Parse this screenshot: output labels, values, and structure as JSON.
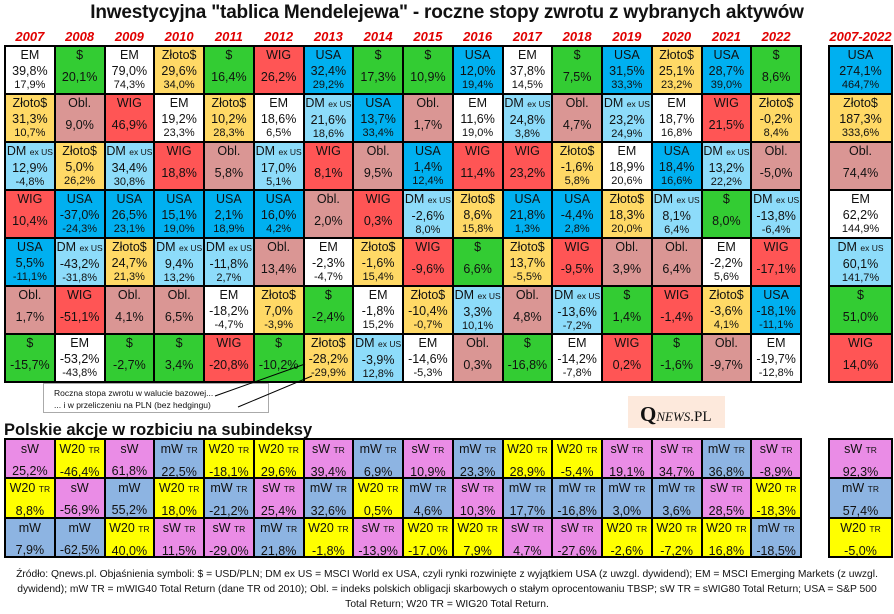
{
  "title": "Inwestycyjna \"tablica Mendelejewa\" - roczne stopy zwrotu z wybranych aktywów",
  "years": [
    "2007",
    "2008",
    "2009",
    "2010",
    "2011",
    "2012",
    "2013",
    "2014",
    "2015",
    "2016",
    "2017",
    "2018",
    "2019",
    "2020",
    "2021",
    "2022"
  ],
  "total_header": "2007-2022",
  "colors": {
    "EM": "#ffffff",
    "$": "#33cc33",
    "Złoto$": "#ffd966",
    "Obl.": "#da9694",
    "WIG": "#ff5555",
    "USA": "#00b0f0",
    "DM ex US": "#8ddcfa",
    "sW": "#ea8ce6",
    "sW TR": "#ea8ce6",
    "W20 TR": "#ffff00",
    "mW": "#8db4e2",
    "mW TR": "#8db4e2"
  },
  "main_rows": [
    [
      [
        "EM",
        "39,8%",
        "17,9%"
      ],
      [
        "$",
        "20,1%"
      ],
      [
        "EM",
        "79,0%",
        "74,3%"
      ],
      [
        "Złoto$",
        "29,6%",
        "34,0%"
      ],
      [
        "$",
        "16,4%"
      ],
      [
        "WIG",
        "26,2%"
      ],
      [
        "USA",
        "32,4%",
        "29,2%"
      ],
      [
        "$",
        "17,3%"
      ],
      [
        "$",
        "10,9%"
      ],
      [
        "USA",
        "12,0%",
        "19,4%"
      ],
      [
        "EM",
        "37,8%",
        "14,5%"
      ],
      [
        "$",
        "7,5%"
      ],
      [
        "USA",
        "31,5%",
        "33,3%"
      ],
      [
        "Złoto$",
        "25,1%",
        "23,2%"
      ],
      [
        "USA",
        "28,7%",
        "39,0%"
      ],
      [
        "$",
        "8,6%"
      ]
    ],
    [
      [
        "Złoto$",
        "31,3%",
        "10,7%"
      ],
      [
        "Obl.",
        "9,0%"
      ],
      [
        "WIG",
        "46,9%"
      ],
      [
        "EM",
        "19,2%",
        "23,3%"
      ],
      [
        "Złoto$",
        "10,2%",
        "28,3%"
      ],
      [
        "EM",
        "18,6%",
        "6,5%"
      ],
      [
        "DM ex US",
        "21,6%",
        "18,6%"
      ],
      [
        "USA",
        "13,7%",
        "33,4%"
      ],
      [
        "Obl.",
        "1,7%"
      ],
      [
        "EM",
        "11,6%",
        "19,0%"
      ],
      [
        "DM ex US",
        "24,8%",
        "3,8%"
      ],
      [
        "Obl.",
        "4,7%"
      ],
      [
        "DM ex US",
        "23,2%",
        "24,9%"
      ],
      [
        "EM",
        "18,7%",
        "16,8%"
      ],
      [
        "WIG",
        "21,5%"
      ],
      [
        "Złoto$",
        "-0,2%",
        "8,4%"
      ]
    ],
    [
      [
        "DM ex US",
        "12,9%",
        "-4,8%"
      ],
      [
        "Złoto$",
        "5,0%",
        "26,2%"
      ],
      [
        "DM ex US",
        "34,4%",
        "30,8%"
      ],
      [
        "WIG",
        "18,8%"
      ],
      [
        "Obl.",
        "5,8%"
      ],
      [
        "DM ex US",
        "17,0%",
        "5,1%"
      ],
      [
        "WIG",
        "8,1%"
      ],
      [
        "Obl.",
        "9,5%"
      ],
      [
        "USA",
        "1,4%",
        "12,4%"
      ],
      [
        "WIG",
        "11,4%"
      ],
      [
        "WIG",
        "23,2%"
      ],
      [
        "Złoto$",
        "-1,6%",
        "5,8%"
      ],
      [
        "EM",
        "18,9%",
        "20,6%"
      ],
      [
        "USA",
        "18,4%",
        "16,6%"
      ],
      [
        "DM ex US",
        "13,2%",
        "22,2%"
      ],
      [
        "Obl.",
        "-5,0%"
      ]
    ],
    [
      [
        "WIG",
        "10,4%"
      ],
      [
        "USA",
        "-37,0%",
        "-24,3%"
      ],
      [
        "USA",
        "26,5%",
        "23,1%"
      ],
      [
        "USA",
        "15,1%",
        "19,0%"
      ],
      [
        "USA",
        "2,1%",
        "18,9%"
      ],
      [
        "USA",
        "16,0%",
        "4,2%"
      ],
      [
        "Obl.",
        "2,0%"
      ],
      [
        "WIG",
        "0,3%"
      ],
      [
        "DM ex US",
        "-2,6%",
        "8,0%"
      ],
      [
        "Złoto$",
        "8,6%",
        "15,8%"
      ],
      [
        "USA",
        "21,8%",
        "1,3%"
      ],
      [
        "USA",
        "-4,4%",
        "2,8%"
      ],
      [
        "Złoto$",
        "18,3%",
        "20,0%"
      ],
      [
        "DM ex US",
        "8,1%",
        "6,4%"
      ],
      [
        "$",
        "8,0%"
      ],
      [
        "DM ex US",
        "-13,8%",
        "-6,4%"
      ]
    ],
    [
      [
        "USA",
        "5,5%",
        "-11,1%"
      ],
      [
        "DM ex US",
        "-43,2%",
        "-31,8%"
      ],
      [
        "Złoto$",
        "24,7%",
        "21,3%"
      ],
      [
        "DM ex US",
        "9,4%",
        "13,2%"
      ],
      [
        "DM ex US",
        "-11,8%",
        "2,7%"
      ],
      [
        "Obl.",
        "13,4%"
      ],
      [
        "EM",
        "-2,3%",
        "-4,7%"
      ],
      [
        "Złoto$",
        "-1,6%",
        "15,4%"
      ],
      [
        "WIG",
        "-9,6%"
      ],
      [
        "$",
        "6,6%"
      ],
      [
        "Złoto$",
        "13,7%",
        "-5,5%"
      ],
      [
        "WIG",
        "-9,5%"
      ],
      [
        "Obl.",
        "3,9%"
      ],
      [
        "Obl.",
        "6,4%"
      ],
      [
        "EM",
        "-2,2%",
        "5,6%"
      ],
      [
        "WIG",
        "-17,1%"
      ]
    ],
    [
      [
        "Obl.",
        "1,7%"
      ],
      [
        "WIG",
        "-51,1%"
      ],
      [
        "Obl.",
        "4,1%"
      ],
      [
        "Obl.",
        "6,5%"
      ],
      [
        "EM",
        "-18,2%",
        "-4,7%"
      ],
      [
        "Złoto$",
        "7,0%",
        "-3,9%"
      ],
      [
        "$",
        "-2,4%"
      ],
      [
        "EM",
        "-1,8%",
        "15,2%"
      ],
      [
        "Złoto$",
        "-10,4%",
        "-0,7%"
      ],
      [
        "DM ex US",
        "3,3%",
        "10,1%"
      ],
      [
        "Obl.",
        "4,8%"
      ],
      [
        "DM ex US",
        "-13,6%",
        "-7,2%"
      ],
      [
        "$",
        "1,4%"
      ],
      [
        "WIG",
        "-1,4%"
      ],
      [
        "Złoto$",
        "-3,6%",
        "4,1%"
      ],
      [
        "USA",
        "-18,1%",
        "-11,1%"
      ]
    ],
    [
      [
        "$",
        "-15,7%"
      ],
      [
        "EM",
        "-53,2%",
        "-43,8%"
      ],
      [
        "$",
        "-2,7%"
      ],
      [
        "$",
        "3,4%"
      ],
      [
        "WIG",
        "-20,8%"
      ],
      [
        "$",
        "-10,2%"
      ],
      [
        "Złoto$",
        "-28,2%",
        "-29,9%"
      ],
      [
        "DM ex US",
        "-3,9%",
        "12,8%"
      ],
      [
        "EM",
        "-14,6%",
        "-5,3%"
      ],
      [
        "Obl.",
        "0,3%"
      ],
      [
        "$",
        "-16,8%"
      ],
      [
        "EM",
        "-14,2%",
        "-7,8%"
      ],
      [
        "WIG",
        "0,2%"
      ],
      [
        "$",
        "-1,6%"
      ],
      [
        "Obl.",
        "-9,7%"
      ],
      [
        "EM",
        "-19,7%",
        "-12,8%"
      ]
    ]
  ],
  "total_rows": [
    [
      "USA",
      "274,1%",
      "464,7%"
    ],
    [
      "Złoto$",
      "187,3%",
      "333,6%"
    ],
    [
      "Obl.",
      "74,4%"
    ],
    [
      "EM",
      "62,2%",
      "144,9%"
    ],
    [
      "DM ex US",
      "60,1%",
      "141,7%"
    ],
    [
      "$",
      "51,0%"
    ],
    [
      "WIG",
      "14,0%"
    ]
  ],
  "annotation": {
    "line1": "Roczna stopa zwrotu w walucie  bazowej...",
    "line2": "... i w przeliczeniu na PLN (bez hedgingu)"
  },
  "logo_text": "QNEWS.PL",
  "sub_title": "Polskie akcje w rozbiciu na subindeksy",
  "sub_rows": [
    [
      [
        "sW",
        "25,2%"
      ],
      [
        "W20 TR",
        "-46,4%"
      ],
      [
        "sW",
        "61,8%"
      ],
      [
        "mW TR",
        "22,5%"
      ],
      [
        "W20 TR",
        "-18,1%"
      ],
      [
        "W20 TR",
        "29,6%"
      ],
      [
        "sW TR",
        "39,4%"
      ],
      [
        "mW TR",
        "6,9%"
      ],
      [
        "sW TR",
        "10,9%"
      ],
      [
        "mW TR",
        "23,3%"
      ],
      [
        "W20 TR",
        "28,9%"
      ],
      [
        "W20 TR",
        "-5,4%"
      ],
      [
        "sW TR",
        "19,1%"
      ],
      [
        "sW TR",
        "34,7%"
      ],
      [
        "mW TR",
        "36,8%"
      ],
      [
        "sW TR",
        "-8,9%"
      ]
    ],
    [
      [
        "W20 TR",
        "8,8%"
      ],
      [
        "sW",
        "-56,9%"
      ],
      [
        "mW",
        "55,2%"
      ],
      [
        "W20 TR",
        "18,0%"
      ],
      [
        "mW TR",
        "-21,2%"
      ],
      [
        "sW TR",
        "25,4%"
      ],
      [
        "mW TR",
        "32,6%"
      ],
      [
        "W20 TR",
        "0,5%"
      ],
      [
        "mW TR",
        "4,6%"
      ],
      [
        "sW TR",
        "10,3%"
      ],
      [
        "mW TR",
        "17,7%"
      ],
      [
        "mW TR",
        "-16,8%"
      ],
      [
        "mW TR",
        "3,0%"
      ],
      [
        "mW TR",
        "3,6%"
      ],
      [
        "sW TR",
        "28,5%"
      ],
      [
        "W20 TR",
        "-18,3%"
      ]
    ],
    [
      [
        "mW",
        "7,9%"
      ],
      [
        "mW",
        "-62,5%"
      ],
      [
        "W20 TR",
        "40,0%"
      ],
      [
        "sW TR",
        "11,5%"
      ],
      [
        "sW TR",
        "-29,0%"
      ],
      [
        "mW TR",
        "21,8%"
      ],
      [
        "W20 TR",
        "-1,8%"
      ],
      [
        "sW TR",
        "-13,9%"
      ],
      [
        "W20 TR",
        "-17,0%"
      ],
      [
        "W20 TR",
        "7,9%"
      ],
      [
        "sW TR",
        "4,7%"
      ],
      [
        "sW TR",
        "-27,6%"
      ],
      [
        "W20 TR",
        "-2,6%"
      ],
      [
        "W20 TR",
        "-7,2%"
      ],
      [
        "W20 TR",
        "16,8%"
      ],
      [
        "mW TR",
        "-18,5%"
      ]
    ]
  ],
  "sub_total_rows": [
    [
      "sW TR",
      "92,3%"
    ],
    [
      "mW TR",
      "57,4%"
    ],
    [
      "W20 TR",
      "-5,0%"
    ]
  ],
  "footer": "Źródło: Qnews.pl. Objaśnienia symboli: $ = USD/PLN; DM ex US = MSCI World ex USA, czyli rynki rozwinięte z wyjątkiem USA (z uwzgl. dywidend); EM = MSCI Emerging Markets (z uwzgl. dywidend); mW TR = mWIG40 Total Return (dane TR od 2010); Obl. = indeks polskich obligacji skarbowych o stałym oprocentowaniu TBSP; sW TR = sWIG80 Total Return; USA = S&P 500 Total Return; W20 TR = WIG20 Total Return."
}
